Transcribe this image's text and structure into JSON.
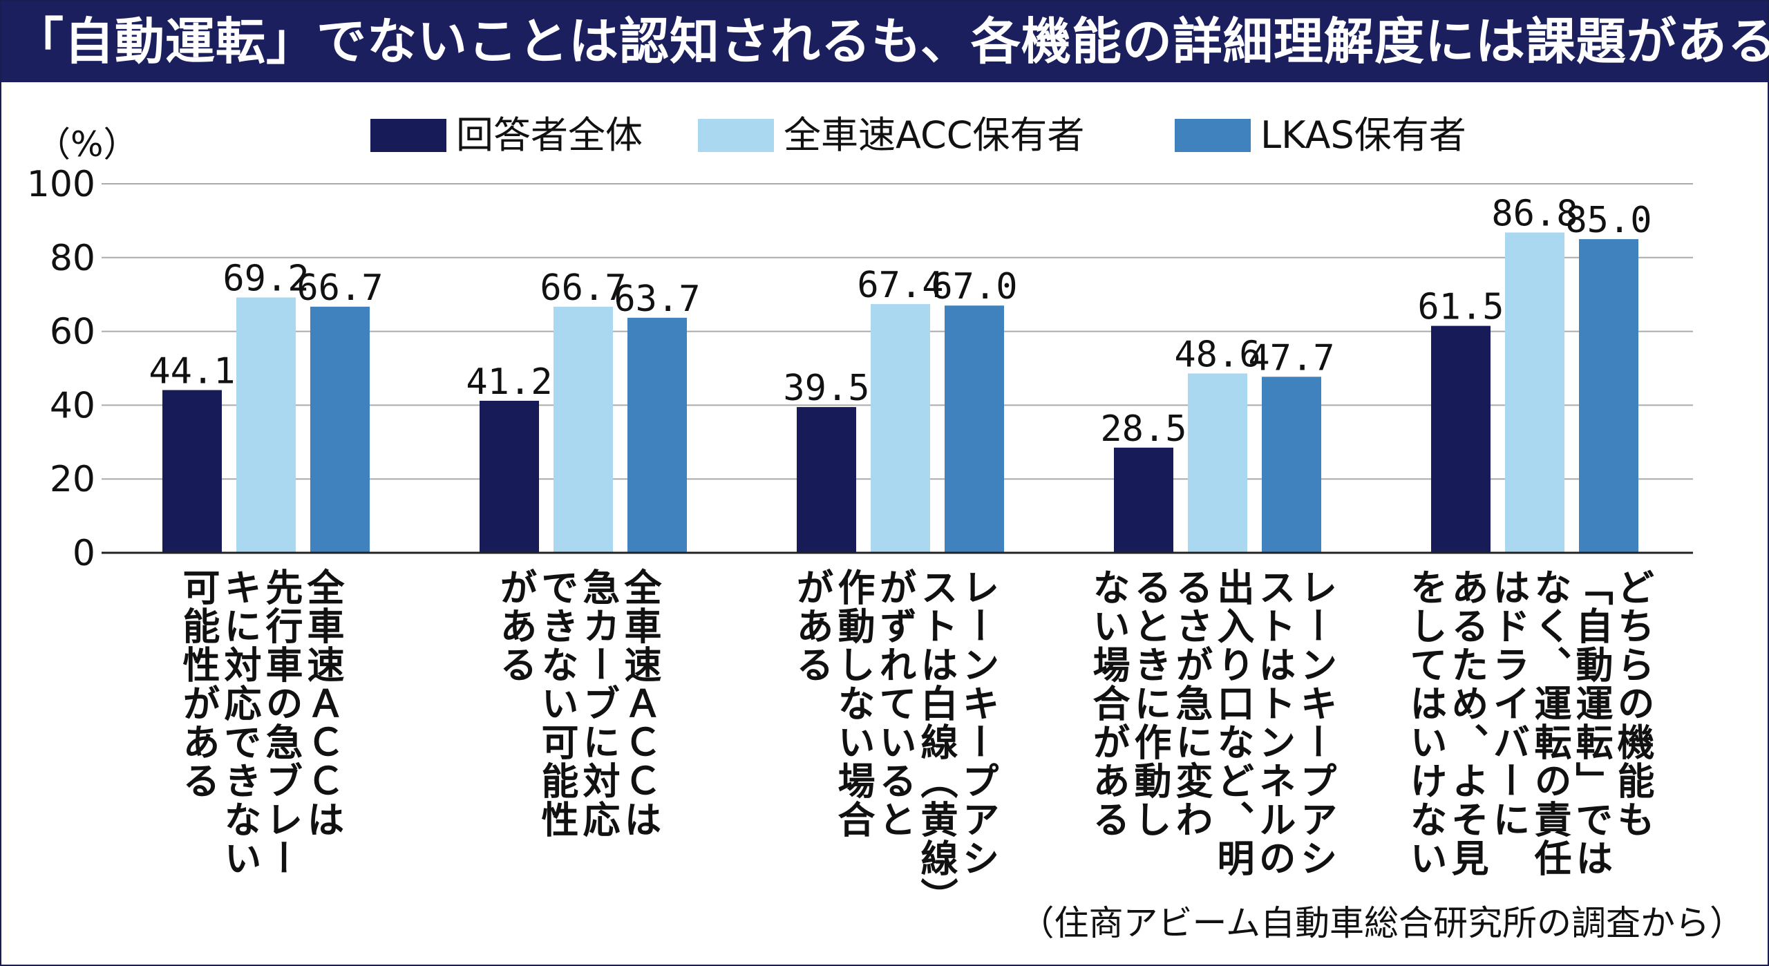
{
  "title": "「自動運転」でないことは認知されるも、各機能の詳細理解度には課題がある",
  "source": "（住商アビーム自動車総合研究所の調査から）",
  "colors": {
    "title_bg": "#1b1f5e",
    "series": [
      "#171c59",
      "#a9d8f0",
      "#3f82bd"
    ],
    "grid": "#aaaaaa",
    "axis": "#222222"
  },
  "chart_data": {
    "type": "bar",
    "unit_label": "（%）",
    "ylim": [
      0,
      100
    ],
    "yticks": [
      0,
      20,
      40,
      60,
      80,
      100
    ],
    "grid": true,
    "legend_position": "top",
    "categories": [
      [
        "全車速ＡＣＣは",
        "先行車の急ブレー",
        "キに対応できない",
        "可能性がある"
      ],
      [
        "全車速ＡＣＣは",
        "急カーブに対応",
        "できない可能性",
        "がある"
      ],
      [
        "レーンキープアシ",
        "ストは白線（黄線）",
        "がずれていると",
        "作動しない場合",
        "がある"
      ],
      [
        "レーンキープアシ",
        "ストはトンネルの",
        "出入り口など、明",
        "るさが急に変わ",
        "るときに作動し",
        "ない場合がある"
      ],
      [
        "どちらの機能も",
        "「自動運転」では",
        "なく、運転の責任",
        "はドライバーに",
        "あるため、よそ見",
        "をしてはいけない"
      ]
    ],
    "series": [
      {
        "name": "回答者全体",
        "values": [
          44.1,
          41.2,
          39.5,
          28.5,
          61.5
        ]
      },
      {
        "name": "全車速ACC保有者",
        "values": [
          69.2,
          66.7,
          67.4,
          48.6,
          86.8
        ]
      },
      {
        "name": "LKAS保有者",
        "values": [
          66.7,
          63.7,
          67.0,
          47.7,
          85.0
        ]
      }
    ]
  }
}
